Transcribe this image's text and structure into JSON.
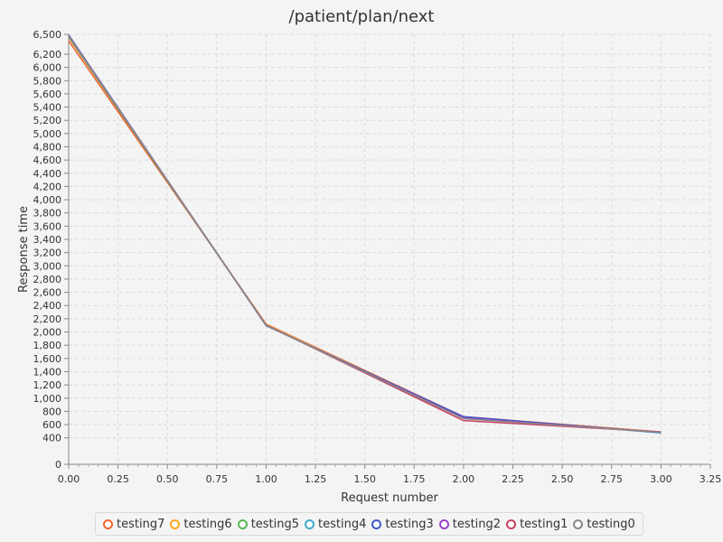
{
  "chart_data": {
    "type": "line",
    "title": "/patient/plan/next",
    "xlabel": "Request number",
    "ylabel": "Response time",
    "xlim": [
      0,
      3.25
    ],
    "ylim": [
      0,
      6500
    ],
    "xticks": [
      "0.00",
      "0.25",
      "0.50",
      "0.75",
      "1.00",
      "1.25",
      "1.50",
      "1.75",
      "2.00",
      "2.25",
      "2.50",
      "2.75",
      "3.00",
      "3.25"
    ],
    "yticks": [
      "0",
      "400",
      "600",
      "800",
      "1,000",
      "1,200",
      "1,400",
      "1,600",
      "1,800",
      "2,000",
      "2,200",
      "2,400",
      "2,600",
      "2,800",
      "3,000",
      "3,200",
      "3,400",
      "3,600",
      "3,800",
      "4,000",
      "4,200",
      "4,400",
      "4,600",
      "4,800",
      "5,000",
      "5,200",
      "5,400",
      "5,600",
      "5,800",
      "6,000",
      "6,200",
      "6,500"
    ],
    "grid": true,
    "legend_position": "bottom",
    "x": [
      0,
      1,
      2,
      3
    ],
    "series": [
      {
        "name": "testing7",
        "color": "#f3622d",
        "values": [
          6400,
          2120,
          720,
          490
        ]
      },
      {
        "name": "testing6",
        "color": "#fba71b",
        "values": [
          6450,
          2110,
          715,
          485
        ]
      },
      {
        "name": "testing5",
        "color": "#57b757",
        "values": [
          6460,
          2100,
          710,
          480
        ]
      },
      {
        "name": "testing4",
        "color": "#41a9c9",
        "values": [
          6470,
          2100,
          715,
          475
        ]
      },
      {
        "name": "testing3",
        "color": "#4258c9",
        "values": [
          6490,
          2095,
          720,
          480
        ]
      },
      {
        "name": "testing2",
        "color": "#9a42c8",
        "values": [
          6480,
          2100,
          700,
          485
        ]
      },
      {
        "name": "testing1",
        "color": "#c84164",
        "values": [
          6470,
          2105,
          660,
          490
        ]
      },
      {
        "name": "testing0",
        "color": "#888888",
        "values": [
          6475,
          2100,
          690,
          485
        ]
      }
    ]
  }
}
